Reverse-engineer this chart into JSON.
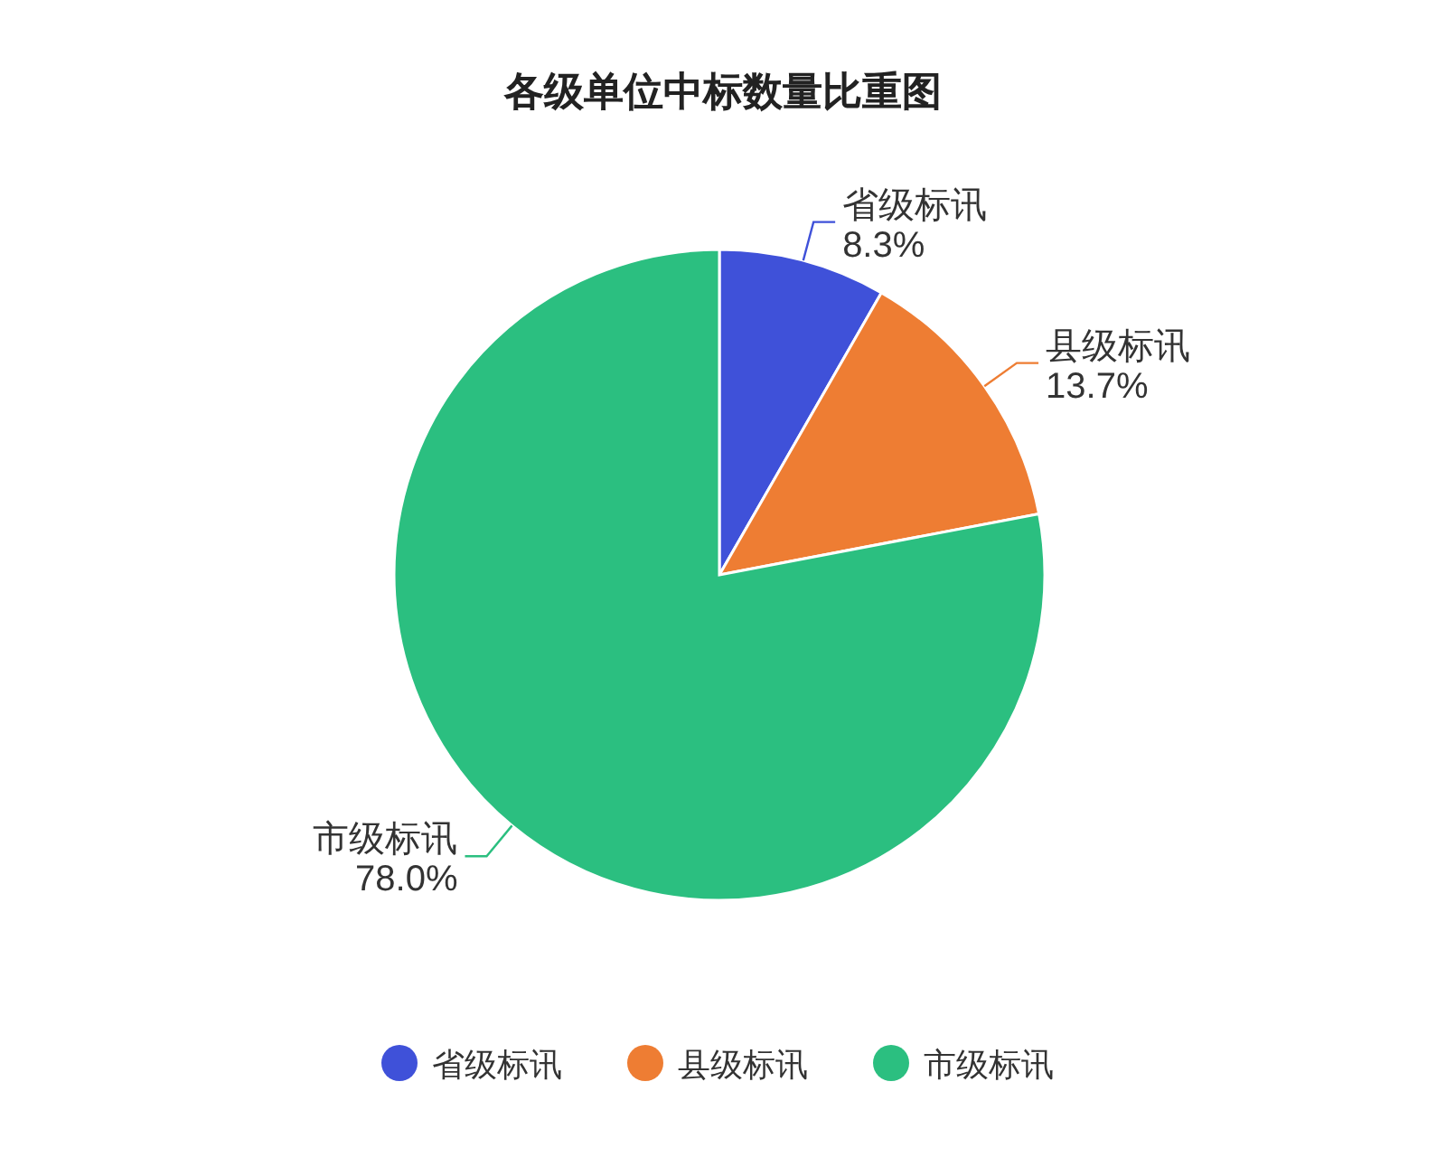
{
  "chart_data": {
    "type": "pie",
    "title": "各级单位中标数量比重图",
    "categories": [
      "省级标讯",
      "县级标讯",
      "市级标讯"
    ],
    "values": [
      8.3,
      13.7,
      78.0
    ],
    "value_labels": [
      "8.3%",
      "13.7%",
      "78.0%"
    ],
    "colors": [
      "#3f51d9",
      "#ee7d33",
      "#2bbf80"
    ],
    "legend": "bottom"
  }
}
